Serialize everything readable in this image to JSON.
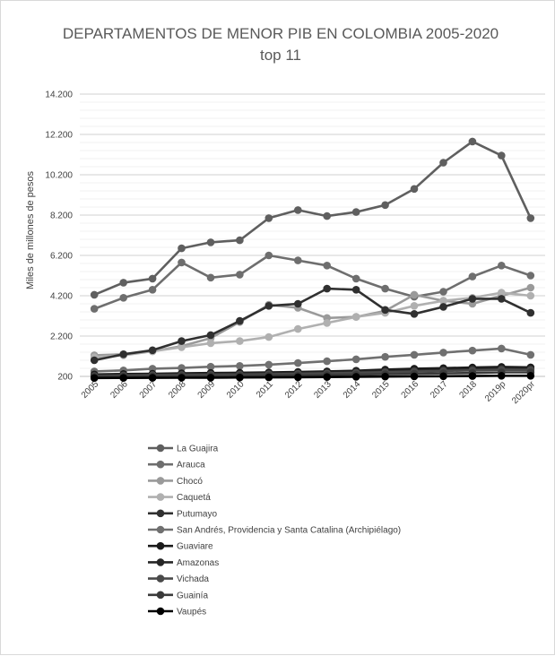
{
  "chart_data": {
    "type": "line",
    "title": "DEPARTAMENTOS DE MENOR PIB EN COLOMBIA 2005-2020",
    "subtitle": "top 11",
    "ylabel": "Miles de millones de pesos",
    "xlabel": "",
    "ylim": [
      200,
      14200
    ],
    "y_ticks": [
      "200",
      "2.200",
      "4.200",
      "6.200",
      "8.200",
      "10.200",
      "12.200",
      "14.200"
    ],
    "grid": true,
    "legend_position": "bottom",
    "categories": [
      "2005",
      "2006",
      "2007",
      "2008",
      "2009",
      "2010",
      "2011",
      "2012",
      "2013",
      "2014",
      "2015",
      "2016",
      "2017",
      "2018",
      "2019p",
      "2020pr"
    ],
    "series": [
      {
        "name": "La Guajira",
        "color": "#5f5f5f",
        "values": [
          4250,
          4850,
          5050,
          6550,
          6850,
          6950,
          8050,
          8450,
          8150,
          8350,
          8700,
          9500,
          10800,
          11850,
          11150,
          8050
        ]
      },
      {
        "name": "Arauca",
        "color": "#6e6e6e",
        "values": [
          3550,
          4100,
          4500,
          5850,
          5100,
          5250,
          6200,
          5950,
          5700,
          5050,
          4550,
          4150,
          4400,
          5150,
          5700,
          5200
        ]
      },
      {
        "name": "Chocó",
        "color": "#9a9a9a",
        "values": [
          1250,
          1300,
          1450,
          1700,
          2100,
          2900,
          3750,
          3600,
          3100,
          3150,
          3450,
          4250,
          3950,
          3800,
          4200,
          4600
        ]
      },
      {
        "name": "Caquetá",
        "color": "#b0b0b0",
        "values": [
          1150,
          1250,
          1450,
          1650,
          1850,
          1950,
          2150,
          2550,
          2850,
          3150,
          3350,
          3700,
          3950,
          4100,
          4350,
          4200
        ]
      },
      {
        "name": "Putumayo",
        "color": "#303030",
        "values": [
          1000,
          1300,
          1500,
          1950,
          2250,
          2950,
          3700,
          3800,
          4550,
          4500,
          3500,
          3300,
          3650,
          4050,
          4050,
          3350
        ]
      },
      {
        "name": "San Andrés, Providencia y Santa Catalina (Archipiélago)",
        "color": "#707070",
        "values": [
          450,
          500,
          580,
          620,
          680,
          720,
          780,
          860,
          950,
          1050,
          1170,
          1270,
          1380,
          1480,
          1580,
          1270
        ]
      },
      {
        "name": "Guaviare",
        "color": "#1a1a1a",
        "values": [
          300,
          320,
          330,
          350,
          370,
          380,
          400,
          420,
          450,
          480,
          540,
          580,
          610,
          640,
          670,
          650
        ]
      },
      {
        "name": "Amazonas",
        "color": "#262626",
        "values": [
          250,
          270,
          290,
          310,
          320,
          330,
          350,
          370,
          390,
          420,
          460,
          490,
          520,
          550,
          580,
          570
        ]
      },
      {
        "name": "Vichada",
        "color": "#4a4a4a",
        "values": [
          220,
          240,
          260,
          270,
          280,
          290,
          310,
          330,
          350,
          380,
          410,
          440,
          470,
          500,
          530,
          520
        ]
      },
      {
        "name": "Guainía",
        "color": "#3a3a3a",
        "values": [
          180,
          190,
          200,
          210,
          220,
          230,
          240,
          250,
          270,
          290,
          310,
          330,
          350,
          370,
          400,
          400
        ]
      },
      {
        "name": "Vaupés",
        "color": "#000000",
        "values": [
          120,
          125,
          130,
          135,
          140,
          145,
          150,
          160,
          170,
          180,
          190,
          200,
          210,
          220,
          230,
          230
        ]
      }
    ]
  }
}
